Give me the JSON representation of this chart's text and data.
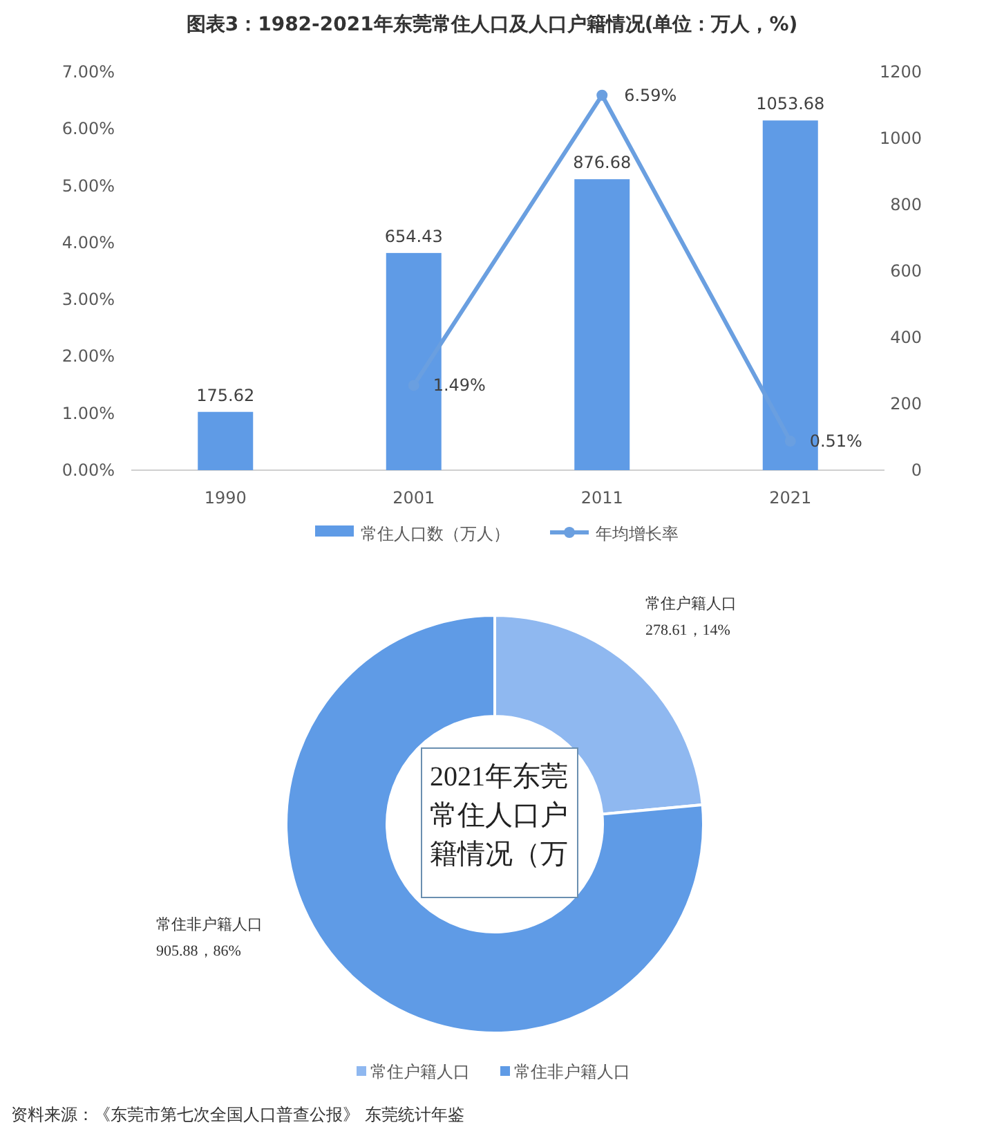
{
  "chart_data": [
    {
      "type": "bar",
      "title": "图表3：1982-2021年东莞常住人口及人口户籍情况(单位：万人，%)",
      "categories": [
        "1990",
        "2001",
        "2011",
        "2021"
      ],
      "series": [
        {
          "name": "常住人口数（万人）",
          "type": "bar",
          "axis": "y2",
          "color": "#5f9be6",
          "values": [
            175.62,
            654.43,
            876.68,
            1053.68
          ],
          "value_labels": [
            "175.62",
            "654.43",
            "876.68",
            "1053.68"
          ]
        },
        {
          "name": "年均增长率",
          "type": "line",
          "axis": "y",
          "color": "#6a9fe0",
          "marker": "circle",
          "values": [
            null,
            1.49,
            6.59,
            0.51
          ],
          "value_labels": [
            null,
            "1.49%",
            "6.59%",
            "0.51%"
          ]
        }
      ],
      "ylim": [
        0,
        7
      ],
      "yticks": [
        {
          "value": 0,
          "label": "0.00%"
        },
        {
          "value": 1,
          "label": "1.00%"
        },
        {
          "value": 2,
          "label": "2.00%"
        },
        {
          "value": 3,
          "label": "3.00%"
        },
        {
          "value": 4,
          "label": "4.00%"
        },
        {
          "value": 5,
          "label": "5.00%"
        },
        {
          "value": 6,
          "label": "6.00%"
        },
        {
          "value": 7,
          "label": "7.00%"
        }
      ],
      "y2lim": [
        0,
        1200
      ],
      "y2ticks": [
        0,
        200,
        400,
        600,
        800,
        1000,
        1200
      ],
      "grid": false,
      "legend": "bottom"
    },
    {
      "type": "donut",
      "title": "2021年东莞常住人口户籍情况（万",
      "categories": [
        "常住户籍人口",
        "常住非户籍人口"
      ],
      "values": [
        278.61,
        905.88
      ],
      "colors": [
        "#8fb8f0",
        "#5f9be6"
      ],
      "value_labels": [
        "278.61，14%",
        "905.88，86%"
      ],
      "legend": "bottom",
      "annotations": [
        "资料来源：《东莞市第七次全国人口普查公报》 东莞统计年鉴"
      ]
    }
  ]
}
